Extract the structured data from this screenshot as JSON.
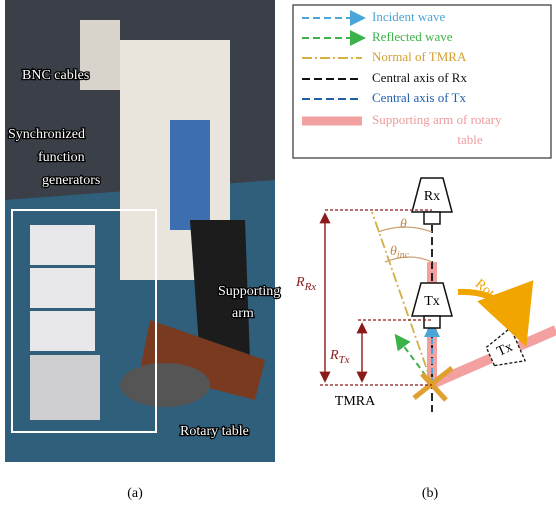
{
  "photo": {
    "labels": {
      "bnc": "BNC cables",
      "generators": [
        "Synchronized",
        "function",
        "generators"
      ],
      "arm": [
        "Supporting",
        "arm"
      ],
      "table": "Rotary table"
    },
    "caption": "(a)"
  },
  "diagram": {
    "legend": [
      "Incident wave",
      "Reflected wave",
      "Normal of TMRA",
      "Central axis of Rx",
      "Central axis of Tx",
      [
        "Supporting arm of rotary",
        "table"
      ]
    ],
    "labels": {
      "rx": "Rx",
      "tx": "Tx",
      "tx_rotated": "Tx",
      "theta": "θ",
      "theta_inc": {
        "symbol": "θ",
        "subscript": "inc"
      },
      "rotation": "Rotation",
      "r_rx": {
        "symbol": "R",
        "subscript": "Rx"
      },
      "r_tx": {
        "symbol": "R",
        "subscript": "Tx"
      },
      "tmra": "TMRA"
    },
    "caption": "(b)"
  }
}
